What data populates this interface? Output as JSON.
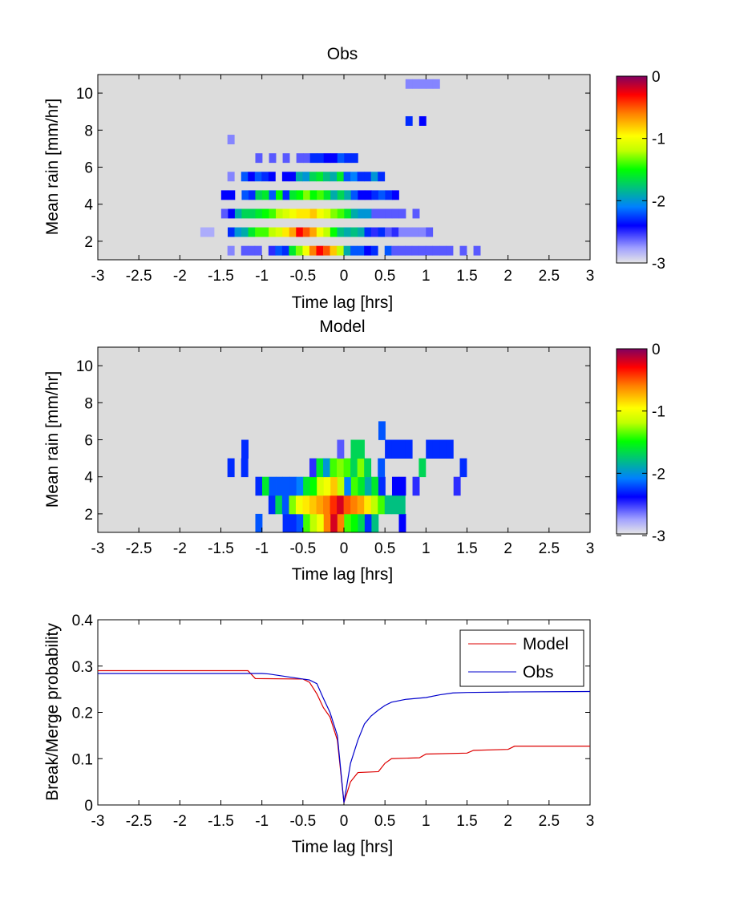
{
  "colors": {
    "background": "#dcdcdc",
    "model_line": "#dd0000",
    "obs_line": "#0000cc"
  },
  "chart_data": [
    {
      "type": "heatmap",
      "title": "Obs",
      "xlabel": "Time lag [hrs]",
      "ylabel": "Mean rain [mm/hr]",
      "xlim": [
        -3,
        3
      ],
      "ylim": [
        1,
        11
      ],
      "xticks": [
        "-3",
        "-2.5",
        "-2",
        "-1.5",
        "-1",
        "-0.5",
        "0",
        "0.5",
        "1",
        "1.5",
        "2",
        "2.5",
        "3"
      ],
      "yticks": [
        "2",
        "4",
        "6",
        "8",
        "10"
      ],
      "colorbar": {
        "range": [
          -3,
          0
        ],
        "ticks": [
          "0",
          "-1",
          "-2",
          "-3"
        ],
        "colormap": "log10 frequency"
      },
      "cell_size": {
        "dx": 0.0833,
        "dy": 0.5
      },
      "rows": [
        {
          "y": 1.5,
          "x0": -1.42,
          "vals": [
            -2.7,
            null,
            -2.6,
            -2.6,
            -2.6,
            null,
            -2.5,
            -2.2,
            -2.3,
            -1.6,
            -1.3,
            -1.0,
            -0.6,
            -0.3,
            -0.5,
            -0.8,
            -1.2,
            -1.9,
            -2.2,
            -2.2,
            -2.4,
            -2.3,
            null,
            -2.2,
            -2.6,
            -2.6,
            -2.6,
            -2.6,
            -2.6,
            -2.6,
            -2.6,
            -2.6,
            -2.6,
            null,
            -2.6,
            null,
            -2.6
          ]
        },
        {
          "y": 2.5,
          "x0": -1.75,
          "vals": [
            -2.8,
            -2.8,
            null,
            null,
            -2.3,
            -2.0,
            -1.9,
            -1.6,
            -1.4,
            -1.4,
            -1.2,
            -1.1,
            -0.9,
            -0.7,
            -0.3,
            -0.5,
            -0.7,
            -1.0,
            -1.2,
            -1.5,
            -1.8,
            -1.9,
            -1.8,
            -1.9,
            -2.3,
            -2.5,
            -2.3,
            -2.6,
            -2.5,
            -2.7,
            -2.7,
            -2.7,
            -2.7,
            -2.6
          ]
        },
        {
          "y": 3.5,
          "x0": -1.58,
          "vals": [
            null,
            -2.6,
            -2.4,
            -1.9,
            -1.7,
            -1.7,
            -1.6,
            -1.5,
            -1.4,
            -1.2,
            -1.1,
            -1.0,
            -0.9,
            -0.9,
            -0.8,
            -1.0,
            -1.1,
            -1.3,
            -1.4,
            -1.6,
            -1.9,
            -2.0,
            -2.0,
            -2.6,
            -2.6,
            -2.6,
            -2.6,
            -2.6,
            null,
            -2.6
          ]
        },
        {
          "y": 4.5,
          "x0": -1.58,
          "vals": [
            null,
            -2.4,
            -2.4,
            null,
            -2.2,
            -2.3,
            -1.7,
            -1.6,
            -2.2,
            -1.5,
            -2.3,
            -1.6,
            -1.5,
            -1.3,
            -1.5,
            -1.4,
            -1.6,
            -1.9,
            -1.7,
            -1.9,
            -2.2,
            -2.4,
            -2.4,
            -2.3,
            -2.2,
            -2.3,
            -2.4
          ]
        },
        {
          "y": 5.5,
          "x0": -1.42,
          "vals": [
            -2.7,
            null,
            -2.2,
            -2.4,
            -2.2,
            -2.3,
            -2.4,
            null,
            -2.4,
            -2.4,
            -1.9,
            -2.0,
            -1.7,
            -1.6,
            -1.8,
            -1.9,
            -1.6,
            -2.2,
            -2.1,
            -2.3,
            -2.3,
            -2.0,
            -2.3
          ]
        },
        {
          "y": 6.5,
          "x0": -1.08,
          "vals": [
            -2.6,
            null,
            -2.6,
            null,
            -2.6,
            null,
            -2.6,
            -2.6,
            -2.3,
            -2.3,
            -2.4,
            -2.4,
            -2.2,
            -2.3,
            -2.3
          ]
        },
        {
          "y": 7.5,
          "x0": -1.42,
          "vals": [
            -2.7
          ]
        },
        {
          "y": 8.5,
          "x0": 0.75,
          "vals": [
            -2.3,
            null,
            -2.4
          ]
        },
        {
          "y": 10.5,
          "x0": 0.75,
          "vals": [
            -2.7,
            -2.7,
            -2.7,
            -2.7,
            -2.7
          ]
        }
      ]
    },
    {
      "type": "heatmap",
      "title": "Model",
      "xlabel": "Time lag [hrs]",
      "ylabel": "Mean rain [mm/hr]",
      "xlim": [
        -3,
        3
      ],
      "ylim": [
        1,
        11
      ],
      "xticks": [
        "-3",
        "-2.5",
        "-2",
        "-1.5",
        "-1",
        "-0.5",
        "0",
        "0.5",
        "1",
        "1.5",
        "2",
        "2.5",
        "3"
      ],
      "yticks": [
        "2",
        "4",
        "6",
        "8",
        "10"
      ],
      "colorbar": {
        "range": [
          -3,
          0
        ],
        "ticks": [
          "0",
          "-1",
          "-2",
          "-3"
        ],
        "colormap": "log10 frequency"
      },
      "cell_size": {
        "dx": 0.0833,
        "dy": 1.0
      },
      "rows": [
        {
          "y": 1.5,
          "x0": -1.08,
          "vals": [
            -2.2,
            null,
            null,
            null,
            -2.3,
            -2.3,
            -2.2,
            -1.4,
            -1.2,
            -1.0,
            -0.6,
            -0.2,
            -0.6,
            -1.4,
            -1.5,
            -1.7,
            -2.3,
            -1.8,
            null,
            null,
            null,
            -2.4
          ]
        },
        {
          "y": 2.5,
          "x0": -0.92,
          "vals": [
            -2.3,
            -1.7,
            -2.2,
            -1.3,
            -1.0,
            -0.9,
            -0.8,
            -0.7,
            -0.6,
            -0.4,
            -0.2,
            -0.5,
            -0.6,
            -0.7,
            -0.9,
            -1.2,
            -1.4,
            -1.8,
            -1.8,
            -1.8
          ]
        },
        {
          "y": 3.5,
          "x0": -1.08,
          "vals": [
            -2.3,
            -1.6,
            -2.2,
            -2.2,
            -2.2,
            -2.2,
            -2.1,
            -1.6,
            -1.5,
            -1.1,
            -1.0,
            -0.8,
            -1.2,
            -2.1,
            -1.4,
            -1.6,
            -1.9,
            -1.6,
            -2.3,
            null,
            -2.4,
            -2.4,
            null,
            -2.5,
            null,
            null,
            null,
            null,
            null,
            -2.5
          ]
        },
        {
          "y": 4.5,
          "x0": -1.42,
          "vals": [
            -2.3,
            null,
            -2.3,
            null,
            null,
            null,
            null,
            null,
            null,
            null,
            null,
            null,
            -2.5,
            -1.6,
            -2.0,
            -1.4,
            -1.3,
            -1.4,
            -1.7,
            -1.3,
            -1.7,
            null,
            -2.2,
            null,
            null,
            null,
            null,
            null,
            -1.7,
            null,
            null,
            null,
            null,
            null,
            -2.3
          ]
        },
        {
          "y": 5.5,
          "x0": -1.25,
          "vals": [
            -2.3,
            null,
            null,
            null,
            null,
            null,
            null,
            null,
            null,
            null,
            null,
            null,
            null,
            null,
            -2.6,
            null,
            -1.7,
            -1.7,
            null,
            null,
            null,
            -2.3,
            -2.3,
            -2.3,
            -2.3,
            null,
            null,
            -2.3,
            -2.3,
            -2.3,
            -2.3
          ]
        },
        {
          "y": 6.5,
          "x0": 0.42,
          "vals": [
            -2.2
          ]
        }
      ]
    },
    {
      "type": "line",
      "title": "",
      "xlabel": "Time lag [hrs]",
      "ylabel": "Break/Merge probability",
      "xlim": [
        -3,
        3
      ],
      "ylim": [
        0,
        0.4
      ],
      "xticks": [
        "-3",
        "-2.5",
        "-2",
        "-1.5",
        "-1",
        "-0.5",
        "0",
        "0.5",
        "1",
        "1.5",
        "2",
        "2.5",
        "3"
      ],
      "yticks": [
        "0",
        "0.1",
        "0.2",
        "0.3",
        "0.4"
      ],
      "legend_position": "top-right",
      "series": [
        {
          "name": "Model",
          "color": "#dd0000",
          "x": [
            -3,
            -1.17,
            -1.08,
            -0.5,
            -0.42,
            -0.33,
            -0.25,
            -0.17,
            -0.08,
            0,
            0.08,
            0.17,
            0.42,
            0.5,
            0.58,
            0.92,
            1.0,
            1.5,
            1.58,
            2.0,
            2.08,
            3.0
          ],
          "y": [
            0.29,
            0.29,
            0.273,
            0.272,
            0.265,
            0.24,
            0.21,
            0.19,
            0.14,
            0.005,
            0.05,
            0.07,
            0.072,
            0.09,
            0.1,
            0.102,
            0.11,
            0.112,
            0.118,
            0.12,
            0.127,
            0.127
          ]
        },
        {
          "name": "Obs",
          "color": "#0000cc",
          "x": [
            -3,
            -1.25,
            -1.0,
            -0.92,
            -0.5,
            -0.42,
            -0.33,
            -0.25,
            -0.17,
            -0.08,
            0,
            0.08,
            0.17,
            0.25,
            0.33,
            0.42,
            0.5,
            0.58,
            0.75,
            1.0,
            1.17,
            1.33,
            1.5,
            2.0,
            3.0
          ],
          "y": [
            0.284,
            0.284,
            0.284,
            0.283,
            0.272,
            0.27,
            0.262,
            0.23,
            0.2,
            0.15,
            0.005,
            0.09,
            0.14,
            0.175,
            0.192,
            0.205,
            0.215,
            0.222,
            0.228,
            0.232,
            0.238,
            0.242,
            0.243,
            0.244,
            0.245
          ]
        }
      ]
    }
  ]
}
